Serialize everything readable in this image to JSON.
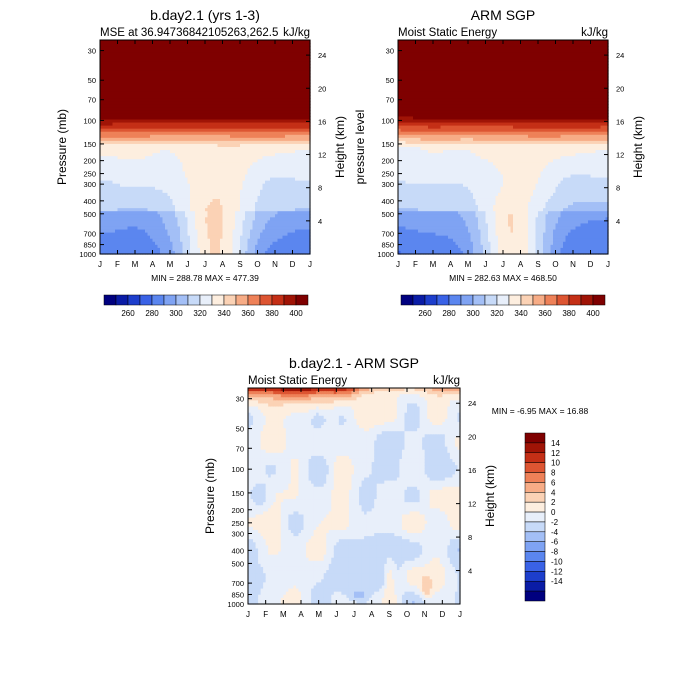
{
  "chart_data": [
    {
      "type": "heatmap",
      "title": "b.day2.1 (yrs 1-3)",
      "subtitle_left": "MSE at 36.94736842105263,262.5",
      "subtitle_right": "kJ/kg",
      "ylabel": "Pressure (mb)",
      "ylabel_right": "Height (km)",
      "x_ticks": [
        "J",
        "F",
        "M",
        "A",
        "M",
        "J",
        "J",
        "A",
        "S",
        "O",
        "N",
        "D",
        "J"
      ],
      "y_ticks": [
        30,
        50,
        70,
        100,
        150,
        200,
        250,
        300,
        400,
        500,
        700,
        850,
        1000
      ],
      "y_right_ticks": [
        4,
        8,
        12,
        16,
        20,
        24
      ],
      "stats": "MIN = 288.78   MAX = 477.39",
      "min": 288.78,
      "max": 477.39,
      "colorbar_labels": [
        "260",
        "280",
        "300",
        "320",
        "340",
        "360",
        "380",
        "400"
      ],
      "levels": [
        250,
        260,
        270,
        280,
        290,
        300,
        310,
        320,
        330,
        340,
        350,
        360,
        370,
        380,
        390,
        400,
        410
      ]
    },
    {
      "type": "heatmap",
      "title": "ARM SGP",
      "subtitle_left": "Moist Static Energy",
      "subtitle_right": "kJ/kg",
      "ylabel": "pressure level",
      "ylabel_right": "Height (km)",
      "x_ticks": [
        "J",
        "F",
        "M",
        "A",
        "M",
        "J",
        "J",
        "A",
        "S",
        "O",
        "N",
        "D",
        "J"
      ],
      "y_ticks": [
        30,
        50,
        70,
        100,
        150,
        200,
        250,
        300,
        400,
        500,
        700,
        850,
        1000
      ],
      "y_right_ticks": [
        4,
        8,
        12,
        16,
        20,
        24
      ],
      "stats": "MIN = 282.63   MAX = 468.50",
      "min": 282.63,
      "max": 468.5,
      "colorbar_labels": [
        "260",
        "280",
        "300",
        "320",
        "340",
        "360",
        "380",
        "400"
      ],
      "levels": [
        250,
        260,
        270,
        280,
        290,
        300,
        310,
        320,
        330,
        340,
        350,
        360,
        370,
        380,
        390,
        400,
        410
      ]
    },
    {
      "type": "heatmap",
      "title": "b.day2.1 - ARM SGP",
      "subtitle_left": "Moist Static Energy",
      "subtitle_right": "kJ/kg",
      "ylabel": "Pressure (mb)",
      "ylabel_right": "Height (km)",
      "x_ticks": [
        "J",
        "F",
        "M",
        "A",
        "M",
        "J",
        "J",
        "A",
        "S",
        "O",
        "N",
        "D",
        "J"
      ],
      "y_ticks": [
        30,
        50,
        70,
        100,
        150,
        200,
        250,
        300,
        400,
        500,
        700,
        850,
        1000
      ],
      "y_right_ticks": [
        4,
        8,
        12,
        16,
        20,
        24
      ],
      "stats": "MIN =  -6.95   MAX =  16.88",
      "min": -6.95,
      "max": 16.88,
      "colorbar_labels": [
        "14",
        "12",
        "10",
        "8",
        "6",
        "4",
        "2",
        "0",
        "-2",
        "-4",
        "-6",
        "-8",
        "-10",
        "-12",
        "-14"
      ],
      "levels": [
        -16,
        -14,
        -12,
        -10,
        -8,
        -6,
        -4,
        -2,
        0,
        2,
        4,
        6,
        8,
        10,
        12,
        14,
        16
      ]
    }
  ],
  "palette": [
    "#00007F",
    "#0A1CA6",
    "#1D3ECC",
    "#3A62E6",
    "#5B86EF",
    "#7FA3F3",
    "#A3BFF6",
    "#C7DAF8",
    "#E8EFFA",
    "#FDEEDF",
    "#FBD2B5",
    "#F7AC86",
    "#EE8158",
    "#DD5532",
    "#C42F16",
    "#A01406",
    "#7F0000"
  ],
  "colors": {
    "background": "#ffffff",
    "axis": "#000000"
  }
}
